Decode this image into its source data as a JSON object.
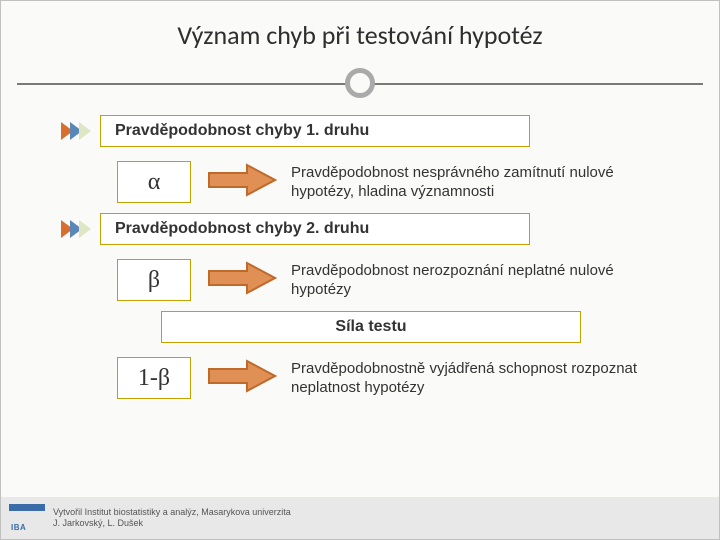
{
  "title": "Význam chyb při testování hypotéz",
  "sections": [
    {
      "heading": "Pravděpodobnost chyby 1. druhu",
      "symbol": "α",
      "description": "Pravděpodobnost nesprávného zamítnutí nulové hypotézy, hladina významnosti"
    },
    {
      "heading": "Pravděpodobnost chyby 2. druhu",
      "symbol": "β",
      "description": "Pravděpodobnost nerozpoznání neplatné nulové hypotézy"
    },
    {
      "heading": "Síla testu",
      "symbol": "1-β",
      "description": "Pravděpodobnostně vyjádřená schopnost rozpoznat neplatnost hypotézy"
    }
  ],
  "footer": {
    "line1": "Vytvořil Institut biostatistiky a analýz, Masarykova univerzita",
    "line2": "J. Jarkovský, L. Dušek",
    "logo_text": "IBA"
  },
  "colors": {
    "chev1": "#d96f2e",
    "chev2": "#5a86b8",
    "chev3": "#dfe6c4",
    "arrow_border": "#bf6a2a",
    "arrow_fill": "#e09055",
    "box_border": "#c4a000",
    "hr": "#7a7a7a",
    "circle": "#aaaaaa"
  },
  "chev_count": 3
}
